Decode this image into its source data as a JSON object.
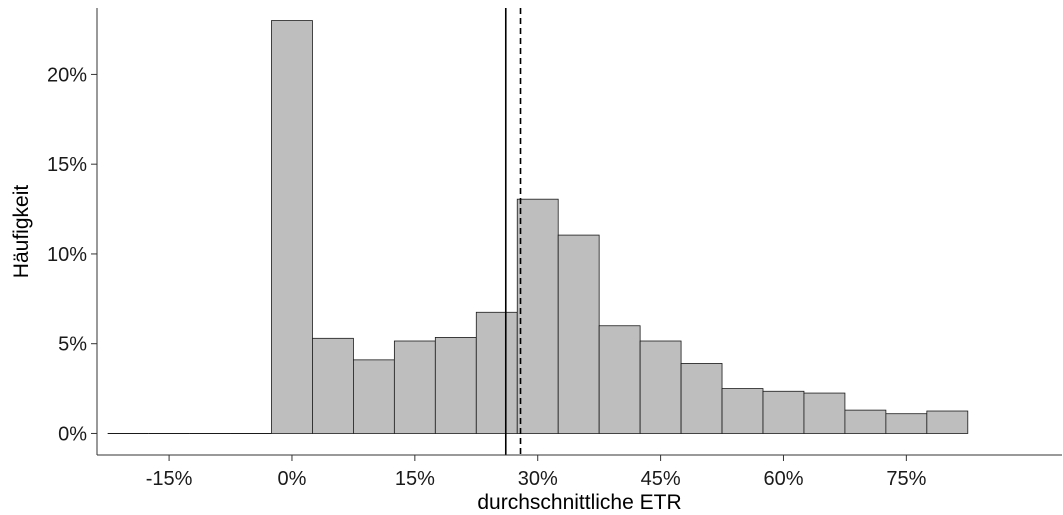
{
  "chart_data": {
    "type": "bar",
    "subtype": "histogram",
    "xlabel": "durchschnittliche ETR",
    "ylabel": "Häufigkeit",
    "x_ticks": [
      -15,
      0,
      15,
      30,
      45,
      60,
      75
    ],
    "x_tick_labels": [
      "-15%",
      "0%",
      "15%",
      "30%",
      "45%",
      "60%",
      "75%"
    ],
    "y_ticks": [
      0,
      5,
      10,
      15,
      20
    ],
    "y_tick_labels": [
      "0%",
      "5%",
      "10%",
      "15%",
      "20%"
    ],
    "xlim": [
      -23.8,
      94.0
    ],
    "ylim": [
      -1.2,
      23.7
    ],
    "bin_width": 5,
    "bins": [
      {
        "x0": -22.5,
        "x1": -17.5,
        "value": 0
      },
      {
        "x0": -17.5,
        "x1": -12.5,
        "value": 0
      },
      {
        "x0": -12.5,
        "x1": -7.5,
        "value": 0
      },
      {
        "x0": -7.5,
        "x1": -2.5,
        "value": 0
      },
      {
        "x0": -2.5,
        "x1": 2.5,
        "value": 23.0
      },
      {
        "x0": 2.5,
        "x1": 7.5,
        "value": 5.3
      },
      {
        "x0": 7.5,
        "x1": 12.5,
        "value": 4.1
      },
      {
        "x0": 12.5,
        "x1": 17.5,
        "value": 5.15
      },
      {
        "x0": 17.5,
        "x1": 22.5,
        "value": 5.35
      },
      {
        "x0": 22.5,
        "x1": 27.5,
        "value": 6.75
      },
      {
        "x0": 27.5,
        "x1": 32.5,
        "value": 13.05
      },
      {
        "x0": 32.5,
        "x1": 37.5,
        "value": 11.05
      },
      {
        "x0": 37.5,
        "x1": 42.5,
        "value": 6.0
      },
      {
        "x0": 42.5,
        "x1": 47.5,
        "value": 5.15
      },
      {
        "x0": 47.5,
        "x1": 52.5,
        "value": 3.9
      },
      {
        "x0": 52.5,
        "x1": 57.5,
        "value": 2.5
      },
      {
        "x0": 57.5,
        "x1": 62.5,
        "value": 2.35
      },
      {
        "x0": 62.5,
        "x1": 67.5,
        "value": 2.25
      },
      {
        "x0": 67.5,
        "x1": 72.5,
        "value": 1.3
      },
      {
        "x0": 72.5,
        "x1": 77.5,
        "value": 1.1
      },
      {
        "x0": 77.5,
        "x1": 82.5,
        "value": 1.25
      }
    ],
    "vlines": [
      {
        "x": 26.1,
        "style": "solid"
      },
      {
        "x": 27.9,
        "style": "dashed"
      }
    ],
    "bar_color": "#bebebe",
    "bar_edge_color": "#1a1a1a",
    "grid": false,
    "legend": "none"
  }
}
